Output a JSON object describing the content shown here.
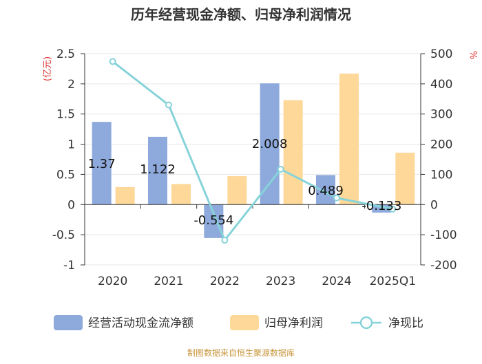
{
  "chart_data": {
    "type": "bar",
    "title": "历年经营现金净额、归母净利润情况",
    "categories": [
      "2020",
      "2021",
      "2022",
      "2023",
      "2024",
      "2025Q1"
    ],
    "y_left": {
      "label": "(亿元)",
      "ticks": [
        "2.5",
        "2",
        "1.5",
        "1",
        "0.5",
        "0",
        "-0.5",
        "-1"
      ],
      "range": [
        -1,
        2.5
      ]
    },
    "y_right": {
      "label": "%",
      "ticks": [
        "500",
        "400",
        "300",
        "200",
        "100",
        "0",
        "-100",
        "-200"
      ],
      "range": [
        -200,
        500
      ]
    },
    "series": [
      {
        "name": "经营活动现金流净额",
        "type": "bar",
        "color": "#8eaadc",
        "values": [
          1.37,
          1.122,
          -0.554,
          2.008,
          0.489,
          -0.133
        ],
        "labels": [
          "1.37",
          "1.122",
          "-0.554",
          "2.008",
          "0.489",
          "-0.133"
        ]
      },
      {
        "name": "归母净利润",
        "type": "bar",
        "color": "#fdd899",
        "values": [
          0.29,
          0.34,
          0.47,
          1.73,
          2.17,
          0.86
        ]
      },
      {
        "name": "净现比",
        "type": "line",
        "color": "#86d3d9",
        "values": [
          474,
          330,
          -118,
          117,
          22,
          -15
        ]
      }
    ],
    "legend": [
      "经营活动现金流净额",
      "归母净利润",
      "净现比"
    ],
    "source": "制图数据来自恒生聚源数据库"
  }
}
